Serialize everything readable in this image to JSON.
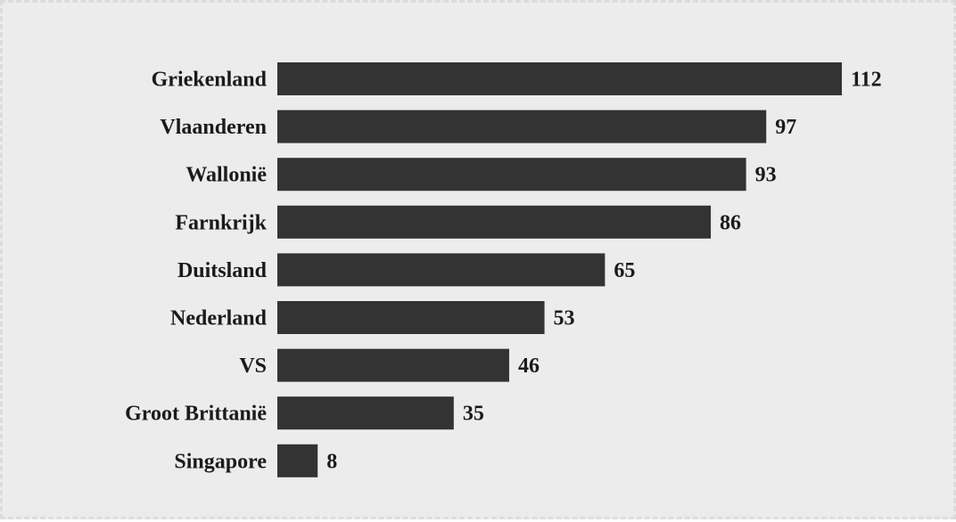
{
  "chart_data": {
    "type": "bar",
    "orientation": "horizontal",
    "categories": [
      "Griekenland",
      "Vlaanderen",
      "Wallonië",
      "Farnkrijk",
      "Duitsland",
      "Nederland",
      "VS",
      "Groot Brittanië",
      "Singapore"
    ],
    "values": [
      112,
      97,
      93,
      86,
      65,
      53,
      46,
      35,
      8
    ],
    "title": "",
    "xlabel": "",
    "ylabel": "",
    "xlim": [
      0,
      112
    ],
    "grid": false,
    "legend": "none",
    "bar_color": "#333333",
    "background": "#ececec"
  }
}
